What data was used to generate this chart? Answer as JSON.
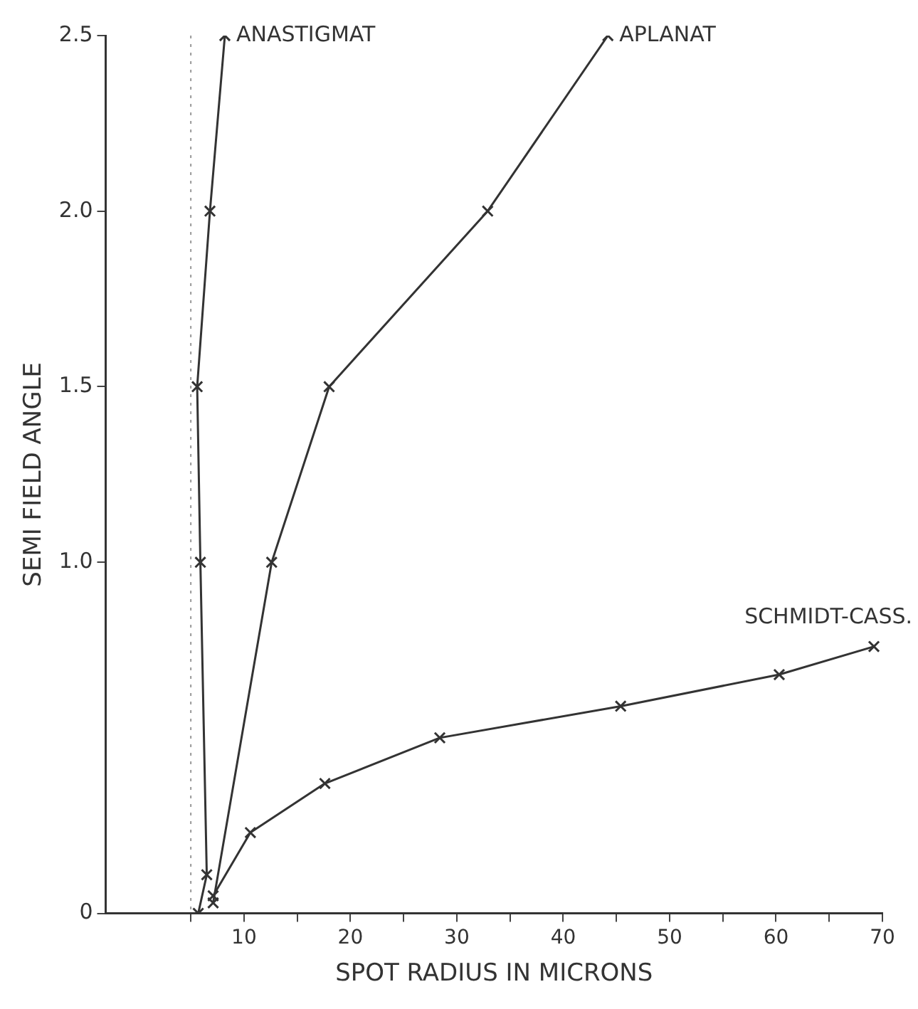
{
  "chart_data": {
    "type": "line",
    "xlabel": "SPOT RADIUS IN MICRONS",
    "ylabel": "SEMI FIELD ANGLE",
    "xlim": [
      -3,
      70
    ],
    "ylim": [
      0,
      2.5
    ],
    "xticks": [
      {
        "value": 5,
        "label": null
      },
      10,
      {
        "value": 15,
        "label": null
      },
      20,
      {
        "value": 25,
        "label": null
      },
      30,
      {
        "value": 35,
        "label": null
      },
      40,
      {
        "value": 45,
        "label": null
      },
      50,
      {
        "value": 55,
        "label": null
      },
      60,
      {
        "value": 65,
        "label": null
      },
      70
    ],
    "yticks": [
      0,
      {
        "value": 1,
        "label": "1.0"
      },
      {
        "value": 1.5,
        "label": "1.5"
      },
      {
        "value": 2,
        "label": "2.0"
      },
      {
        "value": 2.5,
        "label": "2.5"
      }
    ],
    "grid": false,
    "legend": false,
    "marker": "cross",
    "line_style": "solid",
    "ref_lines": [
      {
        "axis": "x",
        "value": 5,
        "line_style": "dotted",
        "color": "#999999"
      }
    ],
    "series": [
      {
        "name": "ANASTIGMAT",
        "color": "#333333",
        "x": [
          5.7,
          6.5,
          5.9,
          5.6,
          6.8,
          8.2
        ],
        "values": [
          0,
          0.11,
          1.0,
          1.5,
          2.0,
          2.5
        ]
      },
      {
        "name": "APLANAT",
        "color": "#333333",
        "x": [
          7.1,
          12.6,
          18.0,
          32.9,
          44.2
        ],
        "values": [
          0.03,
          1.0,
          1.5,
          2.0,
          2.5
        ]
      },
      {
        "name": "SCHMIDT-CASS.",
        "color": "#333333",
        "x": [
          7.1,
          10.6,
          17.6,
          28.4,
          45.4,
          60.3,
          69.2
        ],
        "values": [
          0.05,
          0.23,
          0.37,
          0.5,
          0.59,
          0.68,
          0.76
        ]
      }
    ]
  }
}
